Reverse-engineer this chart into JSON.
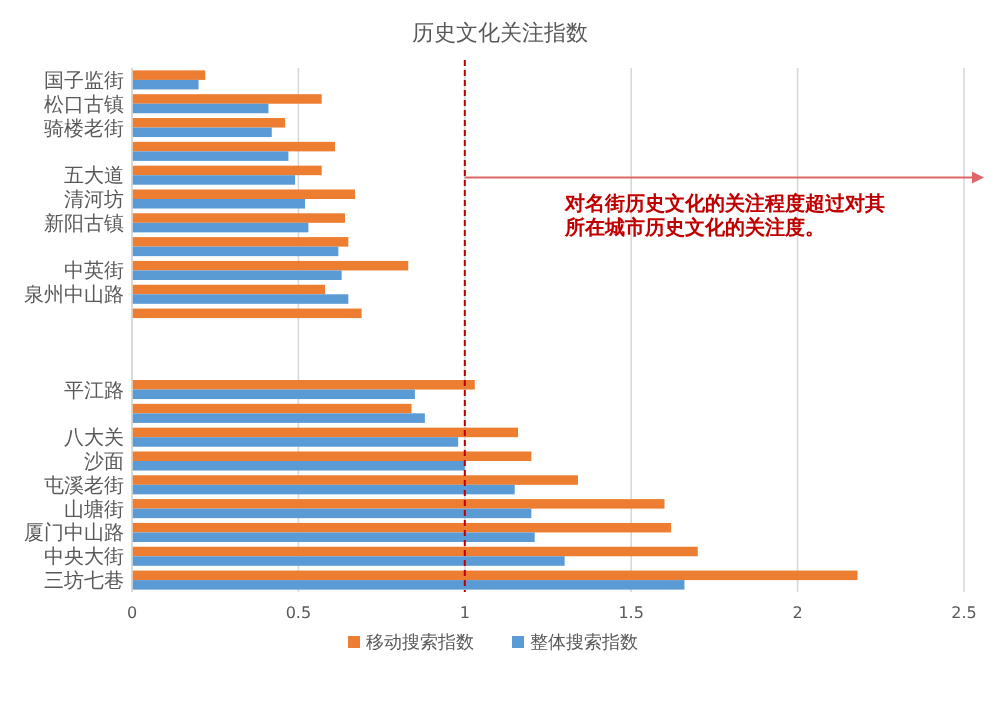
{
  "chart_data": {
    "type": "bar",
    "orientation": "horizontal",
    "title": "历史文化关注指数",
    "categories": [
      "国子监街",
      "松口古镇",
      "骑楼老街",
      null,
      "五大道",
      "清河坊",
      "新阳古镇",
      null,
      "中英街",
      "泉州中山路",
      null,
      null,
      null,
      "平江路",
      null,
      "八大关",
      "沙面",
      "屯溪老街",
      "山塘街",
      "厦门中山路",
      "中央大街",
      "三坊七巷"
    ],
    "series": [
      {
        "name": "移动搜索指数",
        "color": "#ed7d31",
        "values": [
          0.22,
          0.57,
          0.46,
          0.61,
          0.57,
          0.67,
          0.64,
          0.65,
          0.83,
          0.58,
          0.69,
          null,
          null,
          1.03,
          0.84,
          1.16,
          1.2,
          1.34,
          1.6,
          1.62,
          1.7,
          2.18
        ]
      },
      {
        "name": "整体搜索指数",
        "color": "#5b9bd5",
        "values": [
          0.2,
          0.41,
          0.42,
          0.47,
          0.49,
          0.52,
          0.53,
          0.62,
          0.63,
          0.65,
          null,
          null,
          null,
          0.85,
          0.88,
          0.98,
          1.0,
          1.15,
          1.2,
          1.21,
          1.3,
          1.66
        ]
      }
    ],
    "xlim": [
      0,
      2.5
    ],
    "xticks": [
      0,
      0.5,
      1,
      1.5,
      2,
      2.5
    ],
    "grid": "x",
    "legend": "bottom",
    "ref_lines": [
      {
        "axis": "x",
        "value": 1,
        "color": "#c00000",
        "line_style": "dashed"
      }
    ],
    "annotations": [
      "对名街历史文化的关注程度超过对其所在城市历史文化的关注度。"
    ]
  }
}
